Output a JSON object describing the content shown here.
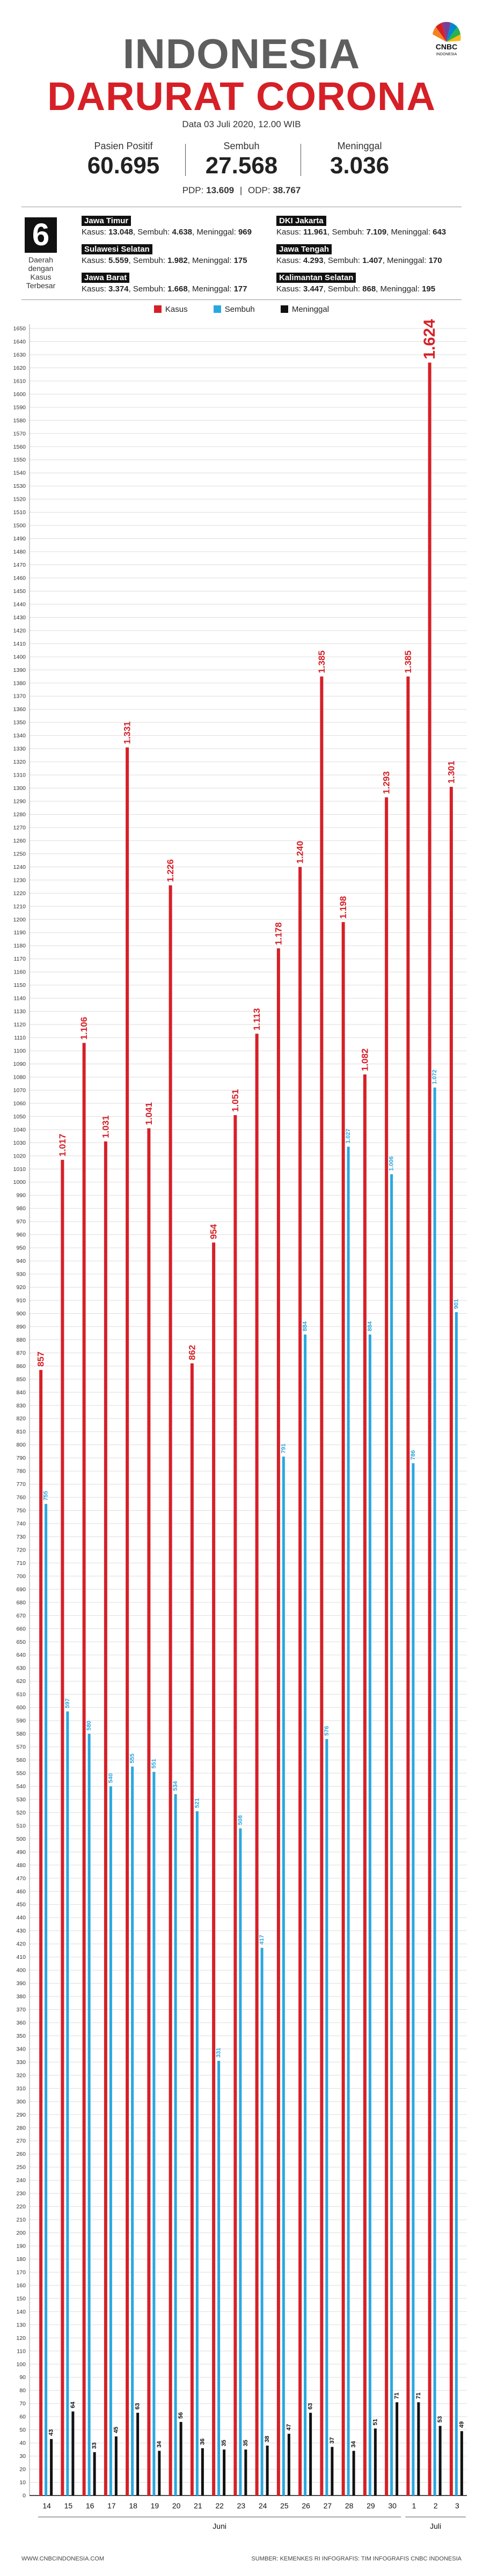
{
  "header": {
    "title_line1": "INDONESIA",
    "title_line2": "DARURAT CORONA",
    "date": "Data 03 Juli 2020, 12.00 WIB",
    "logo_text": "CNBC",
    "logo_subtext": "INDONESIA"
  },
  "stats": [
    {
      "label": "Pasien Positif",
      "value": "60.695"
    },
    {
      "label": "Sembuh",
      "value": "27.568"
    },
    {
      "label": "Meninggal",
      "value": "3.036"
    }
  ],
  "pdp_odp": {
    "pdp_label": "PDP:",
    "pdp_value": "13.609",
    "odp_label": "ODP:",
    "odp_value": "38.767"
  },
  "regions_block": {
    "count": "6",
    "label_lines": [
      "Daerah",
      "dengan",
      "Kasus",
      "Terbesar"
    ]
  },
  "regions": [
    {
      "name": "Jawa Timur",
      "kasus": "13.048",
      "sembuh": "4.638",
      "meninggal": "969"
    },
    {
      "name": "DKI Jakarta",
      "kasus": "11.961",
      "sembuh": "7.109",
      "meninggal": "643"
    },
    {
      "name": "Sulawesi Selatan",
      "kasus": "5.559",
      "sembuh": "1.982",
      "meninggal": "175"
    },
    {
      "name": "Jawa Tengah",
      "kasus": "4.293",
      "sembuh": "1.407",
      "meninggal": "170"
    },
    {
      "name": "Jawa Barat",
      "kasus": "3.374",
      "sembuh": "1.668",
      "meninggal": "177"
    },
    {
      "name": "Kalimantan Selatan",
      "kasus": "3.447",
      "sembuh": "868",
      "meninggal": "195"
    }
  ],
  "labels": {
    "kasus": "Kasus:",
    "sembuh": "Sembuh:",
    "meninggal": "Meninggal:"
  },
  "colors": {
    "red": "#d62027",
    "blue": "#29a8e0",
    "black": "#111111",
    "grey_title": "#5e5e5e"
  },
  "chart_data": {
    "type": "bar",
    "categories": [
      "14",
      "15",
      "16",
      "17",
      "18",
      "19",
      "20",
      "21",
      "22",
      "23",
      "24",
      "25",
      "26",
      "27",
      "28",
      "29",
      "30",
      "1",
      "2",
      "3"
    ],
    "month_groups": [
      {
        "label": "Juni",
        "from": 0,
        "to": 16
      },
      {
        "label": "Juli",
        "from": 17,
        "to": 19
      }
    ],
    "series": [
      {
        "name": "Kasus",
        "color": "#d62027",
        "values": [
          857,
          1017,
          1106,
          1031,
          1331,
          1041,
          1226,
          862,
          954,
          1051,
          1113,
          1178,
          1240,
          1385,
          1198,
          1082,
          1293,
          1385,
          1624,
          1301
        ],
        "labels": [
          "857",
          "1.017",
          "1.106",
          "1.031",
          "1.331",
          "1.041",
          "1.226",
          "862",
          "954",
          "1.051",
          "1.113",
          "1.178",
          "1.240",
          "1.385",
          "1.198",
          "1.082",
          "1.293",
          "1.385",
          "1.624",
          "1.301"
        ]
      },
      {
        "name": "Sembuh",
        "color": "#29a8e0",
        "values": [
          755,
          597,
          580,
          540,
          555,
          551,
          534,
          521,
          331,
          508,
          417,
          791,
          884,
          576,
          1027,
          884,
          1006,
          786,
          1072,
          901
        ],
        "labels": [
          "755",
          "597",
          "580",
          "540",
          "555",
          "551",
          "534",
          "521",
          "331",
          "508",
          "417",
          "791",
          "884",
          "576",
          "1.027",
          "884",
          "1.006",
          "786",
          "1.072",
          "901"
        ]
      },
      {
        "name": "Meninggal",
        "color": "#111111",
        "values": [
          43,
          64,
          33,
          45,
          63,
          34,
          56,
          36,
          35,
          35,
          38,
          47,
          63,
          37,
          34,
          51,
          71,
          71,
          53,
          49
        ],
        "labels": [
          "43",
          "64",
          "33",
          "45",
          "63",
          "34",
          "56",
          "36",
          "35",
          "35",
          "38",
          "47",
          "63",
          "37",
          "34",
          "51",
          "71",
          "71",
          "53",
          "49"
        ]
      }
    ],
    "title": "",
    "xlabel": "",
    "ylabel": "",
    "ylim": [
      0,
      1650
    ],
    "ytick_step": 10,
    "grid": true,
    "legend": "top-center"
  },
  "footer": {
    "left": "WWW.CNBCINDONESIA.COM",
    "right": "SUMBER: KEMENKES RI  INFOGRAFIS: TIM INFOGRAFIS CNBC INDONESIA"
  }
}
